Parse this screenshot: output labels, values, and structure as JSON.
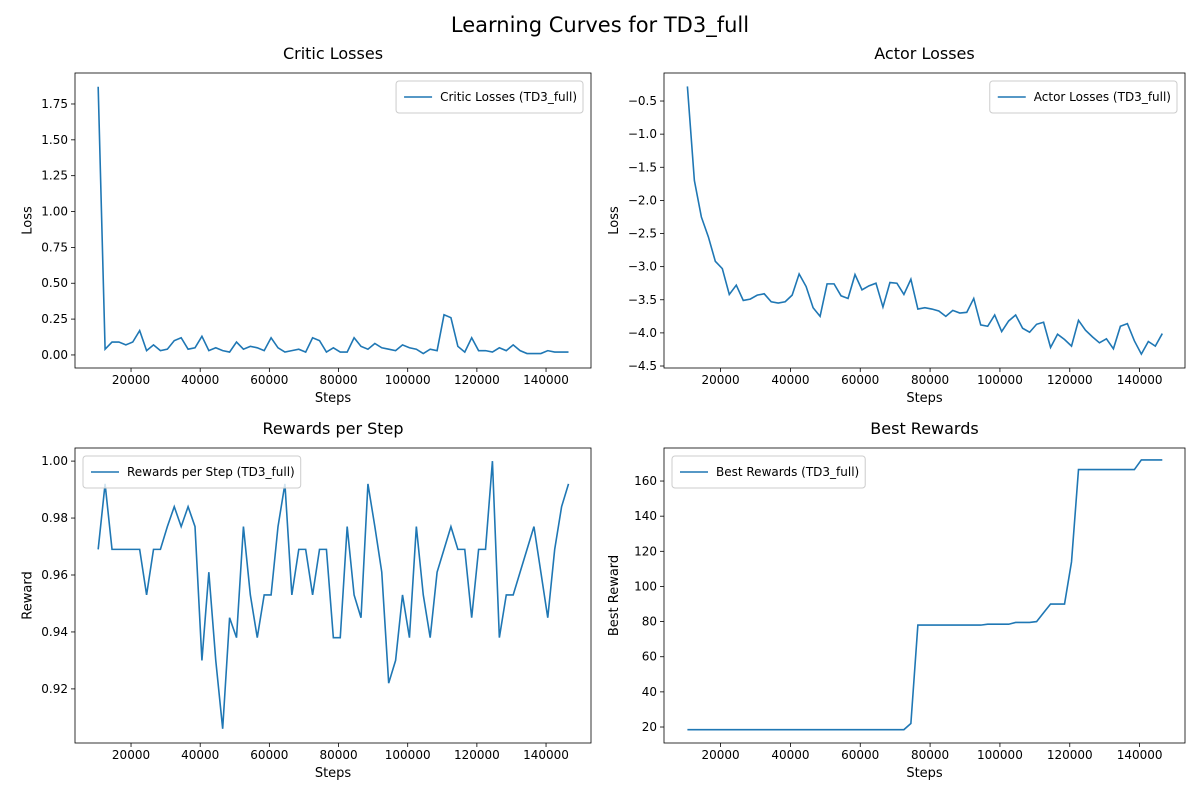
{
  "title": "Learning Curves for TD3_full",
  "chart_data": [
    {
      "type": "line",
      "title": "Critic Losses",
      "xlabel": "Steps",
      "ylabel": "Loss",
      "legend": "upper right",
      "x": [
        10500,
        12500,
        14500,
        16500,
        18500,
        20500,
        22500,
        24500,
        26500,
        28500,
        30500,
        32500,
        34500,
        36500,
        38500,
        40500,
        42500,
        44500,
        46500,
        48500,
        50500,
        52500,
        54500,
        56500,
        58500,
        60500,
        62500,
        64500,
        66500,
        68500,
        70500,
        72500,
        74500,
        76500,
        78500,
        80500,
        82500,
        84500,
        86500,
        88500,
        90500,
        92500,
        94500,
        96500,
        98500,
        100500,
        102500,
        104500,
        106500,
        108500,
        110500,
        112500,
        114500,
        116500,
        118500,
        120500,
        122500,
        124500,
        126500,
        128500,
        130500,
        132500,
        134500,
        136500,
        138500,
        140500,
        142500,
        144500,
        146500
      ],
      "series": [
        {
          "name": "Critic Losses (TD3_full)",
          "color": "#1f77b4",
          "values": [
            1.87,
            0.04,
            0.09,
            0.09,
            0.07,
            0.09,
            0.17,
            0.03,
            0.07,
            0.03,
            0.04,
            0.1,
            0.12,
            0.04,
            0.05,
            0.13,
            0.03,
            0.05,
            0.03,
            0.02,
            0.09,
            0.04,
            0.06,
            0.05,
            0.03,
            0.12,
            0.05,
            0.02,
            0.03,
            0.04,
            0.02,
            0.12,
            0.1,
            0.02,
            0.05,
            0.02,
            0.02,
            0.12,
            0.06,
            0.04,
            0.08,
            0.05,
            0.04,
            0.03,
            0.07,
            0.05,
            0.04,
            0.01,
            0.04,
            0.03,
            0.28,
            0.26,
            0.06,
            0.02,
            0.12,
            0.03,
            0.03,
            0.02,
            0.05,
            0.03,
            0.07,
            0.03,
            0.01,
            0.01,
            0.01,
            0.03,
            0.02,
            0.02,
            0.02
          ]
        }
      ],
      "xlim": [
        3800,
        153000
      ],
      "xticks": [
        20000,
        40000,
        60000,
        80000,
        100000,
        120000,
        140000
      ],
      "ylim": [
        -0.091,
        1.966
      ],
      "yticks": [
        {
          "value": 0,
          "label": "0.00"
        },
        {
          "value": 0.25,
          "label": "0.25"
        },
        {
          "value": 0.5,
          "label": "0.50"
        },
        {
          "value": 0.75,
          "label": "0.75"
        },
        {
          "value": 1,
          "label": "1.00"
        },
        {
          "value": 1.25,
          "label": "1.25"
        },
        {
          "value": 1.5,
          "label": "1.50"
        },
        {
          "value": 1.75,
          "label": "1.75"
        }
      ]
    },
    {
      "type": "line",
      "title": "Actor Losses",
      "xlabel": "Steps",
      "ylabel": "Loss",
      "legend": "upper right",
      "x": [
        10500,
        12500,
        14500,
        16500,
        18500,
        20500,
        22500,
        24500,
        26500,
        28500,
        30500,
        32500,
        34500,
        36500,
        38500,
        40500,
        42500,
        44500,
        46500,
        48500,
        50500,
        52500,
        54500,
        56500,
        58500,
        60500,
        62500,
        64500,
        66500,
        68500,
        70500,
        72500,
        74500,
        76500,
        78500,
        80500,
        82500,
        84500,
        86500,
        88500,
        90500,
        92500,
        94500,
        96500,
        98500,
        100500,
        102500,
        104500,
        106500,
        108500,
        110500,
        112500,
        114500,
        116500,
        118500,
        120500,
        122500,
        124500,
        126500,
        128500,
        130500,
        132500,
        134500,
        136500,
        138500,
        140500,
        142500,
        144500,
        146500
      ],
      "series": [
        {
          "name": "Actor Losses (TD3_full)",
          "color": "#1f77b4",
          "values": [
            -0.28,
            -1.7,
            -2.25,
            -2.55,
            -2.92,
            -3.03,
            -3.42,
            -3.28,
            -3.51,
            -3.49,
            -3.43,
            -3.41,
            -3.53,
            -3.55,
            -3.53,
            -3.43,
            -3.11,
            -3.3,
            -3.62,
            -3.75,
            -3.26,
            -3.26,
            -3.44,
            -3.48,
            -3.12,
            -3.35,
            -3.29,
            -3.25,
            -3.61,
            -3.24,
            -3.25,
            -3.42,
            -3.19,
            -3.64,
            -3.62,
            -3.64,
            -3.67,
            -3.75,
            -3.66,
            -3.7,
            -3.69,
            -3.48,
            -3.88,
            -3.9,
            -3.73,
            -3.98,
            -3.82,
            -3.73,
            -3.93,
            -3.99,
            -3.87,
            -3.84,
            -4.22,
            -4.02,
            -4.1,
            -4.2,
            -3.81,
            -3.96,
            -4.06,
            -4.15,
            -4.09,
            -4.24,
            -3.9,
            -3.86,
            -4.12,
            -4.32,
            -4.13,
            -4.2,
            -4.01
          ]
        }
      ],
      "xlim": [
        3800,
        153000
      ],
      "xticks": [
        20000,
        40000,
        60000,
        80000,
        100000,
        120000,
        140000
      ],
      "ylim": [
        -4.53,
        -0.077
      ],
      "yticks": [
        {
          "value": -4.5,
          "label": "−4.5"
        },
        {
          "value": -4,
          "label": "−4.0"
        },
        {
          "value": -3.5,
          "label": "−3.5"
        },
        {
          "value": -3,
          "label": "−3.0"
        },
        {
          "value": -2.5,
          "label": "−2.5"
        },
        {
          "value": -2,
          "label": "−2.0"
        },
        {
          "value": -1.5,
          "label": "−1.5"
        },
        {
          "value": -1,
          "label": "−1.0"
        },
        {
          "value": -0.5,
          "label": "−0.5"
        }
      ]
    },
    {
      "type": "line",
      "title": "Rewards per Step",
      "xlabel": "Steps",
      "ylabel": "Reward",
      "legend": "upper left",
      "x": [
        10500,
        12500,
        14500,
        16500,
        18500,
        20500,
        22500,
        24500,
        26500,
        28500,
        30500,
        32500,
        34500,
        36500,
        38500,
        40500,
        42500,
        44500,
        46500,
        48500,
        50500,
        52500,
        54500,
        56500,
        58500,
        60500,
        62500,
        64500,
        66500,
        68500,
        70500,
        72500,
        74500,
        76500,
        78500,
        80500,
        82500,
        84500,
        86500,
        88500,
        90500,
        92500,
        94500,
        96500,
        98500,
        100500,
        102500,
        104500,
        106500,
        108500,
        110500,
        112500,
        114500,
        116500,
        118500,
        120500,
        122500,
        124500,
        126500,
        128500,
        130500,
        132500,
        134500,
        136500,
        138500,
        140500,
        142500,
        144500,
        146500
      ],
      "series": [
        {
          "name": "Rewards per Step (TD3_full)",
          "color": "#1f77b4",
          "values": [
            0.969,
            0.992,
            0.969,
            0.969,
            0.969,
            0.969,
            0.969,
            0.953,
            0.969,
            0.969,
            0.977,
            0.984,
            0.977,
            0.984,
            0.977,
            0.93,
            0.961,
            0.93,
            0.906,
            0.945,
            0.938,
            0.977,
            0.953,
            0.938,
            0.953,
            0.953,
            0.977,
            0.992,
            0.953,
            0.969,
            0.969,
            0.953,
            0.969,
            0.969,
            0.938,
            0.938,
            0.977,
            0.953,
            0.945,
            0.992,
            0.977,
            0.961,
            0.922,
            0.93,
            0.953,
            0.938,
            0.977,
            0.953,
            0.938,
            0.961,
            0.969,
            0.977,
            0.969,
            0.969,
            0.945,
            0.969,
            0.969,
            1.0,
            0.938,
            0.953,
            0.953,
            0.961,
            0.969,
            0.977,
            0.961,
            0.945,
            0.969,
            0.984,
            0.992
          ]
        }
      ],
      "xlim": [
        3800,
        153000
      ],
      "xticks": [
        20000,
        40000,
        60000,
        80000,
        100000,
        120000,
        140000
      ],
      "ylim": [
        0.901,
        1.0046
      ],
      "yticks": [
        0.92,
        0.94,
        0.96,
        0.98,
        {
          "value": 1,
          "label": "1.00"
        }
      ]
    },
    {
      "type": "line",
      "title": "Best Rewards",
      "xlabel": "Steps",
      "ylabel": "Best Reward",
      "legend": "upper left",
      "x": [
        10500,
        12500,
        14500,
        16500,
        18500,
        20500,
        22500,
        24500,
        26500,
        28500,
        30500,
        32500,
        34500,
        36500,
        38500,
        40500,
        42500,
        44500,
        46500,
        48500,
        50500,
        52500,
        54500,
        56500,
        58500,
        60500,
        62500,
        64500,
        66500,
        68500,
        70500,
        72500,
        74500,
        76500,
        78500,
        80500,
        82500,
        84500,
        86500,
        88500,
        90500,
        92500,
        94500,
        96500,
        98500,
        100500,
        102500,
        104500,
        106500,
        108500,
        110500,
        112500,
        114500,
        116500,
        118500,
        120500,
        122500,
        124500,
        126500,
        128500,
        130500,
        132500,
        134500,
        136500,
        138500,
        140500,
        142500,
        144500,
        146500
      ],
      "series": [
        {
          "name": "Best Rewards (TD3_full)",
          "color": "#1f77b4",
          "values": [
            18.5,
            18.5,
            18.5,
            18.5,
            18.5,
            18.5,
            18.5,
            18.5,
            18.5,
            18.5,
            18.5,
            18.5,
            18.5,
            18.5,
            18.5,
            18.5,
            18.5,
            18.5,
            18.5,
            18.5,
            18.5,
            18.5,
            18.5,
            18.5,
            18.5,
            18.5,
            18.5,
            18.5,
            18.5,
            18.5,
            18.5,
            18.5,
            22,
            78,
            78,
            78,
            78,
            78,
            78,
            78,
            78,
            78,
            78,
            78.5,
            78.5,
            78.5,
            78.5,
            79.5,
            79.5,
            79.5,
            80,
            85,
            90,
            90,
            90,
            114,
            166.5,
            166.5,
            166.5,
            166.5,
            166.5,
            166.5,
            166.5,
            166.5,
            166.5,
            172,
            172,
            172,
            172
          ]
        }
      ],
      "xlim": [
        3800,
        153000
      ],
      "xticks": [
        20000,
        40000,
        60000,
        80000,
        100000,
        120000,
        140000
      ],
      "ylim": [
        10.9,
        178.8
      ],
      "yticks": [
        20,
        40,
        60,
        80,
        100,
        120,
        140,
        160
      ]
    }
  ]
}
